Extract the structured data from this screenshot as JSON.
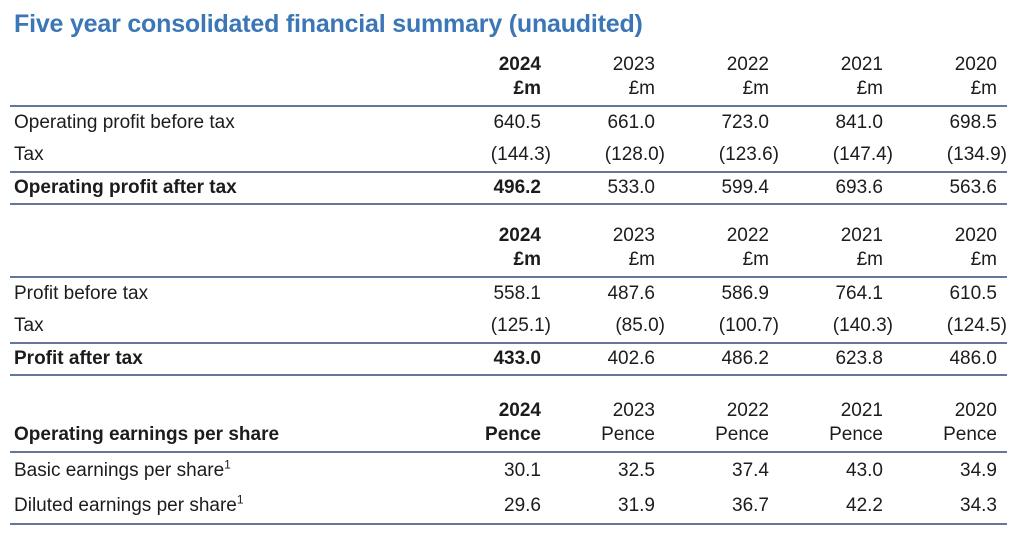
{
  "page": {
    "title": "Five year consolidated financial summary (unaudited)"
  },
  "colors": {
    "title_blue": "#3b76b6",
    "rule_line": "#64779a",
    "text": "#1c1c1c"
  },
  "sections": [
    {
      "header_label": "",
      "years": [
        "2024",
        "2023",
        "2022",
        "2021",
        "2020"
      ],
      "units": [
        "£m",
        "£m",
        "£m",
        "£m",
        "£m"
      ],
      "rows": [
        {
          "label": "Operating profit before tax",
          "values": [
            "640.5",
            "661.0",
            "723.0",
            "841.0",
            "698.5"
          ]
        },
        {
          "label": "Tax",
          "values": [
            "(144.3)",
            "(128.0)",
            "(123.6)",
            "(147.4)",
            "(134.9)"
          ]
        },
        {
          "label": "Operating profit after tax",
          "values": [
            "496.2",
            "533.0",
            "599.4",
            "693.6",
            "563.6"
          ]
        }
      ]
    },
    {
      "header_label": "",
      "years": [
        "2024",
        "2023",
        "2022",
        "2021",
        "2020"
      ],
      "units": [
        "£m",
        "£m",
        "£m",
        "£m",
        "£m"
      ],
      "rows": [
        {
          "label": "Profit before tax",
          "values": [
            "558.1",
            "487.6",
            "586.9",
            "764.1",
            "610.5"
          ]
        },
        {
          "label": "Tax",
          "values": [
            "(125.1)",
            "(85.0)",
            "(100.7)",
            "(140.3)",
            "(124.5)"
          ]
        },
        {
          "label": "Profit after tax",
          "values": [
            "433.0",
            "402.6",
            "486.2",
            "623.8",
            "486.0"
          ]
        }
      ]
    },
    {
      "header_label": "Operating earnings per share",
      "years": [
        "2024",
        "2023",
        "2022",
        "2021",
        "2020"
      ],
      "units": [
        "Pence",
        "Pence",
        "Pence",
        "Pence",
        "Pence"
      ],
      "rows": [
        {
          "label": "Basic earnings per share",
          "sup": "1",
          "values": [
            "30.1",
            "32.5",
            "37.4",
            "43.0",
            "34.9"
          ]
        },
        {
          "label": "Diluted earnings per share",
          "sup": "1",
          "values": [
            "29.6",
            "31.9",
            "36.7",
            "42.2",
            "34.3"
          ]
        }
      ]
    }
  ]
}
